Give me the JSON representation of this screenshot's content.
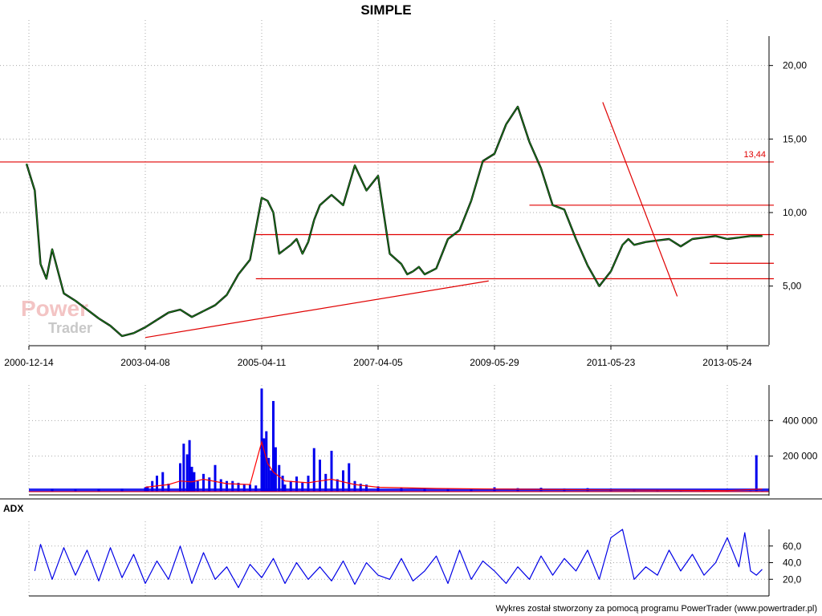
{
  "watermark": {
    "line1": "Power",
    "line2": "Trader"
  },
  "footer": "Wykres został stworzony za pomocą programu PowerTrader (www.powertrader.pl)",
  "chart_data": [
    {
      "type": "line",
      "title": "SIMPLE",
      "x_ticks": [
        "2000-12-14",
        "2003-04-08",
        "2005-04-11",
        "2007-04-05",
        "2009-05-29",
        "2011-05-23",
        "2013-05-24"
      ],
      "x_tick_index": [
        0,
        1,
        2,
        3,
        4,
        5,
        6
      ],
      "y_ticks": [
        {
          "value": 5,
          "label": "5,00"
        },
        {
          "value": 10,
          "label": "10,00"
        },
        {
          "value": 15,
          "label": "15,00"
        },
        {
          "value": 20,
          "label": "20,00"
        }
      ],
      "ylim": [
        1.0,
        22.0
      ],
      "grid": true,
      "series": [
        {
          "color": "#1e8a1e",
          "x": [
            -0.02,
            0.05,
            0.1,
            0.15,
            0.2,
            0.3,
            0.4,
            0.5,
            0.6,
            0.7,
            0.8,
            0.9,
            1.0,
            1.1,
            1.2,
            1.3,
            1.4,
            1.5,
            1.6,
            1.7,
            1.8,
            1.9,
            2.0,
            2.05,
            2.1,
            2.15,
            2.2,
            2.25,
            2.3,
            2.35,
            2.4,
            2.45,
            2.5,
            2.6,
            2.7,
            2.8,
            2.9,
            3.0,
            3.1,
            3.2,
            3.25,
            3.3,
            3.35,
            3.4,
            3.45,
            3.5,
            3.6,
            3.7,
            3.8,
            3.9,
            4.0,
            4.1,
            4.2,
            4.3,
            4.4,
            4.5,
            4.6,
            4.7,
            4.8,
            4.9,
            5.0,
            5.1,
            5.15,
            5.2,
            5.3,
            5.4,
            5.5,
            5.6,
            5.7,
            5.8,
            5.9,
            6.0,
            6.1,
            6.2,
            6.3
          ],
          "values": [
            13.3,
            11.5,
            6.5,
            5.5,
            7.5,
            4.5,
            4.0,
            3.4,
            2.8,
            2.3,
            1.6,
            1.8,
            2.2,
            2.7,
            3.2,
            3.4,
            2.9,
            3.3,
            3.7,
            4.4,
            5.8,
            6.8,
            11.0,
            10.8,
            10.0,
            7.2,
            7.5,
            7.8,
            8.2,
            7.2,
            8.0,
            9.5,
            10.5,
            11.2,
            10.5,
            13.2,
            11.5,
            12.5,
            7.2,
            6.5,
            5.8,
            6.0,
            6.3,
            5.8,
            6.0,
            6.2,
            8.2,
            8.8,
            10.8,
            13.5,
            14.0,
            16.0,
            17.2,
            14.8,
            13.0,
            10.5,
            10.2,
            8.2,
            6.4,
            5.0,
            6.0,
            7.8,
            8.2,
            7.8,
            8.0,
            8.1,
            8.2,
            7.7,
            8.2,
            8.3,
            8.4,
            8.2,
            8.3,
            8.4,
            8.4
          ]
        }
      ],
      "horizontal_levels": [
        {
          "value": 13.44,
          "label": "13,44",
          "x_start": -0.25,
          "x_end": 6.4,
          "color": "#e00000"
        },
        {
          "value": 10.5,
          "x_start": 4.3,
          "x_end": 6.4,
          "color": "#e00000"
        },
        {
          "value": 8.5,
          "x_start": 1.95,
          "x_end": 6.4,
          "color": "#e00000"
        },
        {
          "value": 6.55,
          "x_start": 5.85,
          "x_end": 6.4,
          "color": "#e00000"
        },
        {
          "value": 5.5,
          "x_start": 1.95,
          "x_end": 6.4,
          "color": "#e00000"
        }
      ],
      "trend_lines": [
        {
          "x1": 1.0,
          "y1": 1.5,
          "x2": 3.95,
          "y2": 5.35,
          "color": "#e00000"
        },
        {
          "x1": 4.93,
          "y1": 17.5,
          "x2": 5.57,
          "y2": 4.3,
          "color": "#e00000"
        }
      ]
    },
    {
      "type": "bar",
      "y_ticks": [
        {
          "value": 200000,
          "label": "200 000"
        },
        {
          "value": 400000,
          "label": "400 000"
        }
      ],
      "ylim": [
        0,
        600000
      ],
      "series": [
        {
          "color": "#0000ee",
          "x": [
            0.2,
            0.4,
            0.6,
            0.8,
            1.0,
            1.02,
            1.06,
            1.1,
            1.15,
            1.2,
            1.3,
            1.33,
            1.36,
            1.38,
            1.4,
            1.42,
            1.45,
            1.5,
            1.55,
            1.6,
            1.65,
            1.7,
            1.75,
            1.8,
            1.85,
            1.9,
            1.95,
            2.0,
            2.02,
            2.04,
            2.06,
            2.08,
            2.1,
            2.12,
            2.15,
            2.18,
            2.2,
            2.25,
            2.3,
            2.35,
            2.4,
            2.45,
            2.5,
            2.55,
            2.6,
            2.65,
            2.7,
            2.75,
            2.8,
            2.85,
            2.9,
            3.0,
            3.2,
            3.4,
            3.6,
            3.8,
            4.0,
            4.2,
            4.4,
            4.6,
            4.8,
            5.0,
            5.2,
            5.4,
            5.6,
            5.8,
            6.0,
            6.2,
            6.25,
            6.3
          ],
          "values": [
            15000,
            12000,
            14000,
            16000,
            25000,
            30000,
            60000,
            90000,
            110000,
            45000,
            160000,
            270000,
            210000,
            290000,
            140000,
            110000,
            60000,
            100000,
            80000,
            150000,
            70000,
            60000,
            60000,
            50000,
            40000,
            40000,
            35000,
            580000,
            300000,
            340000,
            190000,
            120000,
            510000,
            250000,
            150000,
            90000,
            40000,
            60000,
            85000,
            50000,
            90000,
            245000,
            180000,
            100000,
            230000,
            70000,
            120000,
            160000,
            60000,
            45000,
            40000,
            30000,
            22000,
            20000,
            18000,
            18000,
            25000,
            20000,
            22000,
            18000,
            20000,
            15000,
            12000,
            10000,
            8000,
            8000,
            5000,
            6000,
            205000,
            4000
          ]
        },
        {
          "color": "#ff0000",
          "x": [
            1.0,
            1.2,
            1.3,
            1.4,
            1.5,
            1.7,
            1.9,
            2.0,
            2.05,
            2.1,
            2.2,
            2.4,
            2.5,
            2.6,
            2.8,
            3.0,
            3.5,
            4.0,
            5.0,
            6.0,
            6.3
          ],
          "values": [
            25000,
            40000,
            60000,
            55000,
            70000,
            45000,
            40000,
            280000,
            160000,
            110000,
            60000,
            50000,
            60000,
            70000,
            40000,
            25000,
            18000,
            15000,
            10000,
            6000,
            15000
          ]
        }
      ]
    },
    {
      "type": "line",
      "title": "ADX",
      "y_ticks": [
        {
          "value": 20,
          "label": "20,0"
        },
        {
          "value": 40,
          "label": "40,0"
        },
        {
          "value": 60,
          "label": "60,0"
        }
      ],
      "ylim": [
        0,
        80
      ],
      "series": [
        {
          "name": "ADX",
          "color": "#0000e6",
          "x": [
            0.05,
            0.1,
            0.2,
            0.3,
            0.4,
            0.5,
            0.6,
            0.7,
            0.8,
            0.9,
            1.0,
            1.1,
            1.2,
            1.3,
            1.4,
            1.5,
            1.6,
            1.7,
            1.8,
            1.9,
            2.0,
            2.1,
            2.2,
            2.3,
            2.4,
            2.5,
            2.6,
            2.7,
            2.8,
            2.9,
            3.0,
            3.1,
            3.2,
            3.3,
            3.4,
            3.5,
            3.6,
            3.7,
            3.8,
            3.9,
            4.0,
            4.1,
            4.2,
            4.3,
            4.4,
            4.5,
            4.6,
            4.7,
            4.8,
            4.9,
            5.0,
            5.1,
            5.2,
            5.3,
            5.4,
            5.5,
            5.6,
            5.7,
            5.8,
            5.9,
            6.0,
            6.1,
            6.15,
            6.2,
            6.25,
            6.3
          ],
          "values": [
            30,
            62,
            20,
            58,
            25,
            55,
            18,
            58,
            22,
            50,
            15,
            42,
            20,
            60,
            15,
            52,
            20,
            35,
            10,
            38,
            22,
            45,
            15,
            40,
            20,
            35,
            18,
            42,
            14,
            40,
            25,
            20,
            45,
            18,
            30,
            48,
            15,
            55,
            20,
            42,
            30,
            15,
            35,
            20,
            48,
            25,
            45,
            30,
            55,
            20,
            70,
            80,
            20,
            35,
            25,
            55,
            30,
            50,
            25,
            40,
            70,
            35,
            76,
            30,
            25,
            32
          ]
        }
      ]
    }
  ]
}
